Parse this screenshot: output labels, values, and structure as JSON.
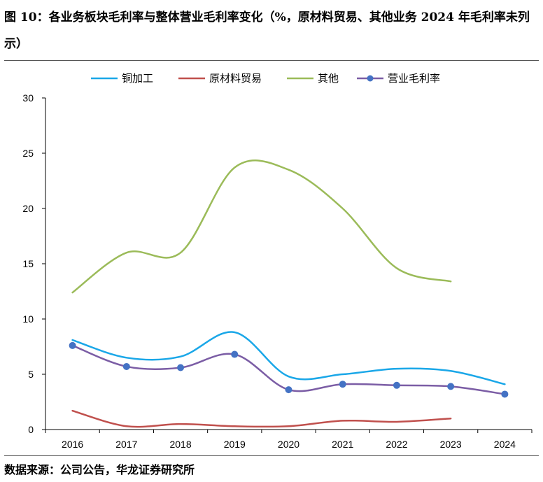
{
  "figure": {
    "title": "图 10：各业务板块毛利率与整体营业毛利率变化（%，原材料贸易、其他业务 2024 年毛利率未列示）",
    "source": "数据来源：公司公告，华龙证券研究所"
  },
  "colors": {
    "copper": "#1aa7e8",
    "trade": "#c0504d",
    "other": "#9bbb59",
    "total": "#7b5da5",
    "total_marker": "#4472c4"
  },
  "chart_data": {
    "type": "line",
    "x": [
      "2016",
      "2017",
      "2018",
      "2019",
      "2020",
      "2021",
      "2022",
      "2023",
      "2024"
    ],
    "ylim": [
      0,
      30
    ],
    "yticks": [
      "0",
      "5",
      "10",
      "15",
      "20",
      "25",
      "30"
    ],
    "grid": false,
    "legend_position": "top",
    "series": [
      {
        "name": "铜加工",
        "values": [
          8.1,
          6.5,
          6.6,
          8.8,
          4.8,
          5.0,
          5.5,
          5.3,
          4.1
        ],
        "marker": false
      },
      {
        "name": "原材料贸易",
        "values": [
          1.7,
          0.3,
          0.5,
          0.3,
          0.3,
          0.8,
          0.7,
          1.0,
          null
        ],
        "marker": false
      },
      {
        "name": "其他",
        "values": [
          12.4,
          16.0,
          16.0,
          23.7,
          23.5,
          20.0,
          14.6,
          13.4,
          null
        ],
        "marker": false
      },
      {
        "name": "营业毛利率",
        "values": [
          7.6,
          5.7,
          5.6,
          6.8,
          3.6,
          4.1,
          4.0,
          3.9,
          3.2
        ],
        "marker": true
      }
    ]
  }
}
